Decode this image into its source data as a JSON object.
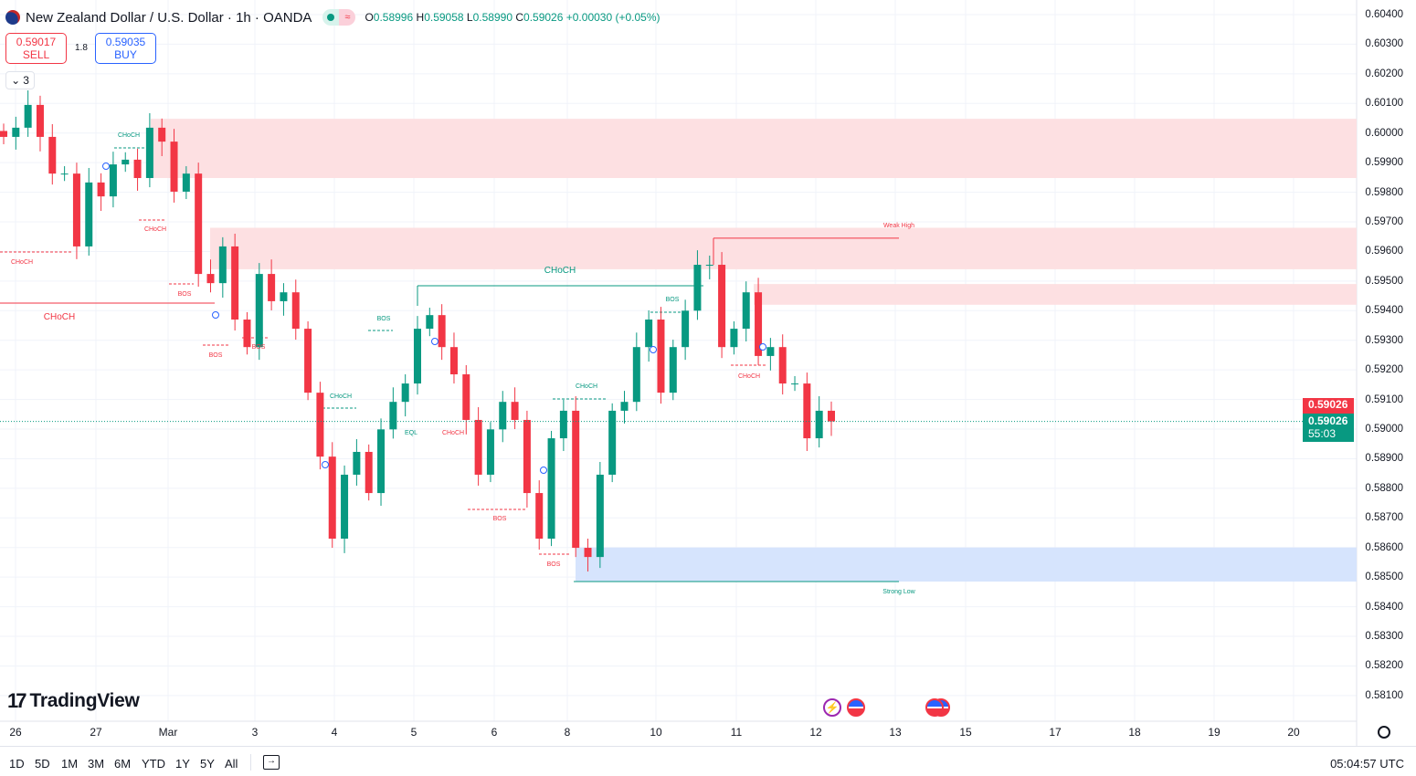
{
  "header": {
    "title": "New Zealand Dollar / U.S. Dollar · 1h · OANDA",
    "market_status_icon": "market-open-dot",
    "delay_icon": "approx-icon",
    "ohlc": {
      "o_label": "O",
      "o": "0.58996",
      "h_label": "H",
      "h": "0.59058",
      "l_label": "L",
      "l": "0.58990",
      "c_label": "C",
      "c": "0.59026",
      "change": "+0.00030 (+0.05%)"
    }
  },
  "trade": {
    "sell_price": "0.59017",
    "sell_label": "SELL",
    "spread": "1.8",
    "buy_price": "0.59035",
    "buy_label": "BUY",
    "indicators_count": "3"
  },
  "colors": {
    "up": "#089981",
    "down": "#f23645",
    "supply_zone": "#fde0e2",
    "demand_zone": "#d6e4fd"
  },
  "price_badges": {
    "last": "0.59026",
    "current": "0.59026",
    "countdown": "55:03"
  },
  "annotations": [
    "CHoCH",
    "CHoCH",
    "CHoCH",
    "BOS",
    "BOS",
    "BOS",
    "CHoCH",
    "CHoCH",
    "BOS",
    "EQL",
    "CHoCH",
    "BOS",
    "BOS",
    "CHoCH",
    "BOS",
    "CHoCH",
    "CHoCH",
    "Weak High",
    "Strong Low",
    "BOS"
  ],
  "logo": "TradingView",
  "bottom": {
    "ranges": [
      "1D",
      "5D",
      "1M",
      "3M",
      "6M",
      "YTD",
      "1Y",
      "5Y",
      "All"
    ],
    "clock": "05:04:57 UTC"
  },
  "chart_data": {
    "type": "candlestick",
    "symbol": "NZDUSD",
    "interval": "1h",
    "x_ticks": [
      "26",
      "27",
      "Mar",
      "3",
      "4",
      "5",
      "6",
      "8",
      "10",
      "11",
      "12",
      "13",
      "15",
      "17",
      "18",
      "19",
      "20"
    ],
    "y_ticks": [
      "0.60400",
      "0.60300",
      "0.60200",
      "0.60100",
      "0.60000",
      "0.59900",
      "0.59800",
      "0.59700",
      "0.59600",
      "0.59500",
      "0.59400",
      "0.59300",
      "0.59200",
      "0.59100",
      "0.59000",
      "0.58900",
      "0.58800",
      "0.58700",
      "0.58600",
      "0.58500",
      "0.58400",
      "0.58300",
      "0.58200",
      "0.58100"
    ],
    "ylim": [
      0.581,
      0.604
    ],
    "grid": true,
    "approx_closes": [
      0.59987,
      0.60018,
      0.60095,
      0.59987,
      0.59863,
      0.59863,
      0.59617,
      0.59833,
      0.59786,
      0.59894,
      0.5991,
      0.59848,
      0.60018,
      0.59971,
      0.59802,
      0.59863,
      0.59524,
      0.59493,
      0.59617,
      0.5937,
      0.59277,
      0.59524,
      0.59432,
      0.59462,
      0.59339,
      0.59123,
      0.58907,
      0.5863,
      0.58846,
      0.58923,
      0.58784,
      0.58999,
      0.59092,
      0.59154,
      0.59339,
      0.59385,
      0.59277,
      0.59185,
      0.59031,
      0.58846,
      0.58999,
      0.59092,
      0.59031,
      0.58784,
      0.5863,
      0.58969,
      0.59062,
      0.58599,
      0.58568,
      0.58846,
      0.59062,
      0.59092,
      0.59277,
      0.5937,
      0.59123,
      0.59277,
      0.594,
      0.59555,
      0.59555,
      0.59277,
      0.59339,
      0.59462,
      0.59247,
      0.59277,
      0.59154,
      0.59154,
      0.58969,
      0.59062,
      0.59026
    ],
    "zones": [
      {
        "kind": "supply",
        "top": 0.60048,
        "bottom": 0.59848
      },
      {
        "kind": "supply",
        "top": 0.5968,
        "bottom": 0.5954
      },
      {
        "kind": "supply",
        "top": 0.5949,
        "bottom": 0.5942
      },
      {
        "kind": "demand",
        "top": 0.586,
        "bottom": 0.58485
      }
    ],
    "levels": {
      "weak_high": 0.59645,
      "strong_low": 0.58485,
      "choch_major": 0.59485,
      "choch_red": 0.59425
    },
    "last_price": 0.59026
  }
}
